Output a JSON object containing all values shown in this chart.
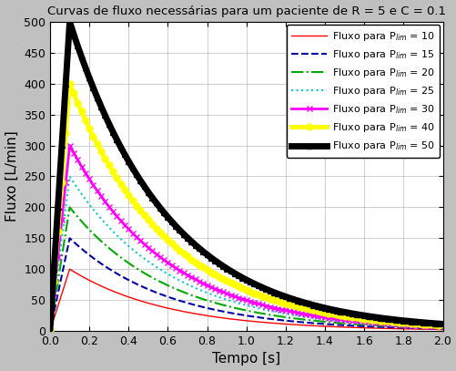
{
  "title": "Curvas de fluxo necessárias para um paciente de R = 5 e C = 0.1",
  "xlabel": "Tempo [s]",
  "ylabel": "Fluxo [L/min]",
  "R": 5,
  "C": 0.1,
  "P_lim_values": [
    10,
    15,
    20,
    25,
    30,
    40,
    50
  ],
  "colors": [
    "#ff0000",
    "#0000aa",
    "#00aa00",
    "#00cccc",
    "#ff00ff",
    "#ffff00",
    "#000000"
  ],
  "linestyles": [
    "-",
    "--",
    "-.",
    ":",
    "-",
    "-",
    "-"
  ],
  "markers": [
    null,
    null,
    null,
    null,
    "x",
    "o",
    "^"
  ],
  "linewidths": [
    1.0,
    1.5,
    1.5,
    1.5,
    2.0,
    3.5,
    5.0
  ],
  "t_start": 0,
  "t_end": 2.0,
  "t_peak": 0.1,
  "tau": 0.5,
  "ylim": [
    0,
    500
  ],
  "xlim": [
    0,
    2.0
  ],
  "xticks": [
    0,
    0.2,
    0.4,
    0.6,
    0.8,
    1.0,
    1.2,
    1.4,
    1.6,
    1.8,
    2.0
  ],
  "yticks": [
    0,
    50,
    100,
    150,
    200,
    250,
    300,
    350,
    400,
    450,
    500
  ],
  "peak_scale": 10,
  "background_color": "#c0c0c0",
  "plot_bg_color": "#ffffff",
  "legend_labels": [
    "Fluxo para P$_{lim}$ = 10",
    "Fluxo para P$_{lim}$ = 15",
    "Fluxo para P$_{lim}$ = 20",
    "Fluxo para P$_{lim}$ = 25",
    "Fluxo para P$_{lim}$ = 30",
    "Fluxo para P$_{lim}$ = 40",
    "Fluxo para P$_{lim}$ = 50"
  ]
}
